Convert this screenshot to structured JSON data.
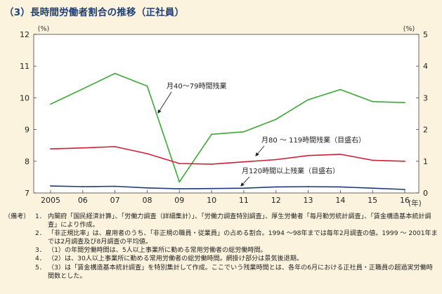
{
  "title": "（3）長時間労働者割合の推移（正社員）",
  "chart_data": {
    "type": "line",
    "left_axis": {
      "unit": "(%)",
      "min": 7,
      "max": 12,
      "ticks": [
        7,
        8,
        9,
        10,
        11,
        12
      ]
    },
    "right_axis": {
      "unit": "(%)",
      "min": 0,
      "max": 5,
      "ticks": [
        0,
        1,
        2,
        3,
        4,
        5
      ]
    },
    "x_unit": "(年)",
    "x": [
      2005,
      2006,
      2007,
      2008,
      2009,
      2010,
      2011,
      2012,
      2013,
      2014,
      2015,
      2016
    ],
    "x_tick_labels": [
      "2005",
      "06",
      "07",
      "08",
      "09",
      "10",
      "11",
      "12",
      "13",
      "14",
      "15",
      "16"
    ],
    "grid": false,
    "series": [
      {
        "name": "月40～79時間残業",
        "axis": "left",
        "color": "#3aa935",
        "values": [
          9.8,
          10.28,
          10.77,
          10.37,
          7.35,
          8.85,
          8.93,
          9.32,
          9.94,
          10.26,
          9.88,
          9.85
        ]
      },
      {
        "name": "月80 ～ 119時間残業（目盛右）",
        "axis": "right",
        "color": "#d21e37",
        "values": [
          1.39,
          1.42,
          1.46,
          1.24,
          0.93,
          0.91,
          0.98,
          1.05,
          1.18,
          1.22,
          1.03,
          1.0
        ]
      },
      {
        "name": "月120時間以上残業（目盛右）",
        "axis": "right",
        "color": "#1e3a7a",
        "values": [
          0.22,
          0.2,
          0.21,
          0.16,
          0.13,
          0.14,
          0.15,
          0.19,
          0.2,
          0.19,
          0.15,
          0.11
        ]
      }
    ]
  },
  "notes": {
    "label": "（備考）",
    "items": [
      {
        "num": "1．",
        "text": "内閣府「国民経済計算」、「労働力調査（詳細集計）」、「労働力調査特別調査」、厚生労働者「毎月勤労統計調査」、「賃金構造基本統計調査」により作成。"
      },
      {
        "num": "2．",
        "text": "「非正規比率」は、雇用者のうち、「非正規の職員・従業員」の占める割合。1994 ～98年までは毎年2月調査の値。1999 ～ 2001年までは2月調査及び8月調査の平均値。"
      },
      {
        "num": "3．",
        "text": "（1）の年間労働時間は、5人以上事業所に勤める常用労働者の総労働時間。"
      },
      {
        "num": "4．",
        "text": "（2）は、30人以上事業所に勤める常用労働者の総労働時間。網掛け部分は景気後退期。"
      },
      {
        "num": "5．",
        "text": "（3）は「賃金構造基本統計調査」を特別集計して作成。ここでいう残業時間とは、各年の6月における正社員・正職員の超過実労働時間数とした。"
      }
    ]
  }
}
